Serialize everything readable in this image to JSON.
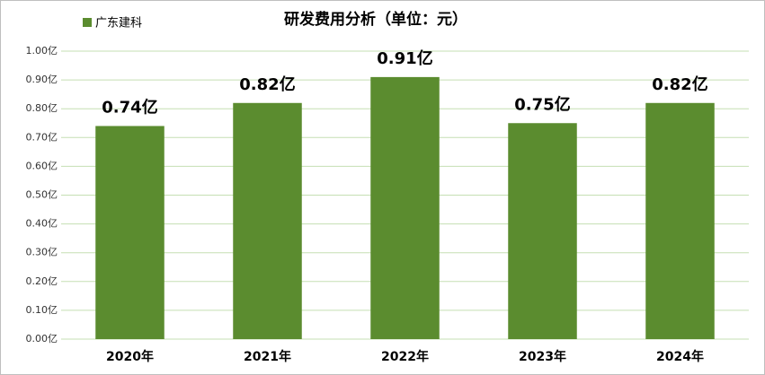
{
  "chart_data": {
    "type": "bar",
    "title": "研发费用分析（单位：元）",
    "categories": [
      "2020年",
      "2021年",
      "2022年",
      "2023年",
      "2024年"
    ],
    "series": [
      {
        "name": "广东建科",
        "color": "#5b8c2f",
        "values": [
          0.74,
          0.82,
          0.91,
          0.75,
          0.82
        ],
        "value_labels": [
          "0.74亿",
          "0.82亿",
          "0.91亿",
          "0.75亿",
          "0.82亿"
        ]
      }
    ],
    "ylim": [
      0,
      1
    ],
    "yticks": [
      {
        "value": 0,
        "label": "0.00亿"
      },
      {
        "value": 0.1,
        "label": "0.10亿"
      },
      {
        "value": 0.2,
        "label": "0.20亿"
      },
      {
        "value": 0.3,
        "label": "0.30亿"
      },
      {
        "value": 0.4,
        "label": "0.40亿"
      },
      {
        "value": 0.5,
        "label": "0.50亿"
      },
      {
        "value": 0.6,
        "label": "0.60亿"
      },
      {
        "value": 0.7,
        "label": "0.70亿"
      },
      {
        "value": 0.8,
        "label": "0.80亿"
      },
      {
        "value": 0.9,
        "label": "0.90亿"
      },
      {
        "value": 1,
        "label": "1.00亿"
      }
    ],
    "grid": true,
    "legend": "top-left"
  }
}
